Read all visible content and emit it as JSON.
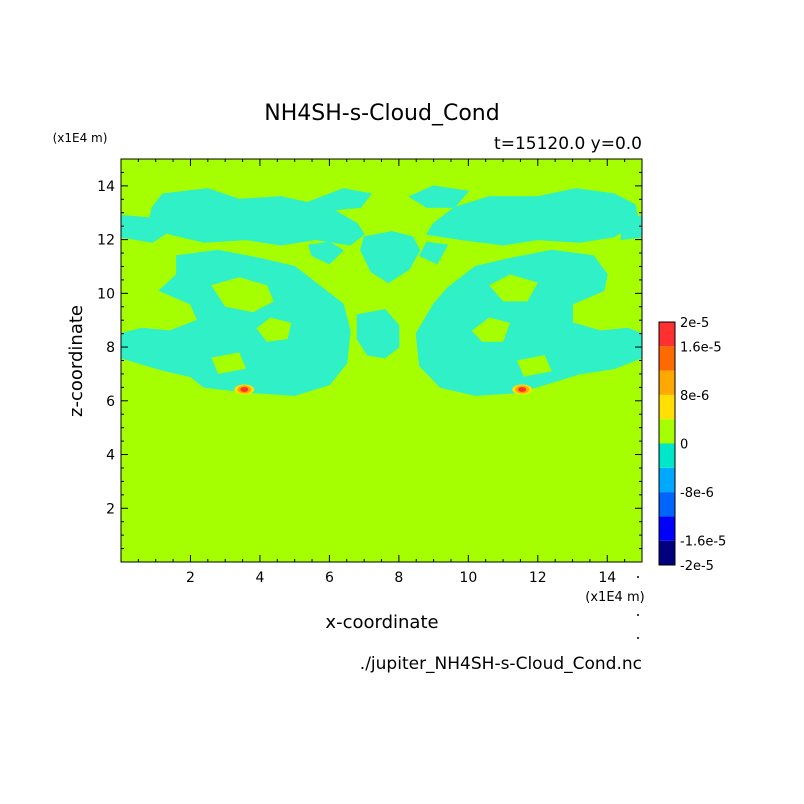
{
  "chart_data": {
    "type": "heatmap",
    "title": "NH4SH-s-Cloud_Cond",
    "subtitle": "t=15120.0 y=0.0",
    "xlabel": "x-coordinate",
    "ylabel": "z-coordinate",
    "x_units": "(x1E4 m)",
    "y_units": "(x1E4 m)",
    "footer": "./jupiter_NH4SH-s-Cloud_Cond.nc",
    "xlim": [
      0,
      15
    ],
    "ylim": [
      0,
      15
    ],
    "x_ticks": [
      2,
      4,
      6,
      8,
      10,
      12,
      14
    ],
    "y_ticks": [
      2,
      4,
      6,
      8,
      10,
      12,
      14
    ],
    "x_tick_labels": [
      "2",
      "4",
      "6",
      "8",
      "10",
      "12",
      "14"
    ],
    "y_tick_labels": [
      "2",
      "4",
      "6",
      "8",
      "10",
      "12",
      "14"
    ],
    "colorbar": {
      "labels": [
        "2e-5",
        "1.6e-5",
        "8e-6",
        "0",
        "-8e-6",
        "-1.6e-5",
        "-2e-5"
      ],
      "label_values": [
        2e-05,
        1.6e-05,
        8e-06,
        0,
        -8e-06,
        -1.6e-05,
        -2e-05
      ],
      "levels": [
        -2e-05,
        -1.6e-05,
        -1.2e-05,
        -8e-06,
        -4e-06,
        0,
        4e-06,
        8e-06,
        1.2e-05,
        1.6e-05,
        2e-05
      ],
      "colors": [
        "#00007e",
        "#0000ff",
        "#0064ff",
        "#00a8ff",
        "#00e6c8",
        "#a6ff00",
        "#ffe000",
        "#ffa800",
        "#ff6a00",
        "#ff3030"
      ]
    },
    "background_level_color": "#a6ff00",
    "negative_region_color": "#30f0c8",
    "cloud_regions": [
      [
        [
          1.2,
          13.7
        ],
        [
          2.5,
          13.9
        ],
        [
          3.4,
          13.5
        ],
        [
          4.6,
          13.6
        ],
        [
          6.0,
          13.2
        ],
        [
          6.8,
          12.6
        ],
        [
          7.0,
          12.2
        ],
        [
          6.6,
          11.8
        ],
        [
          5.6,
          12.0
        ],
        [
          4.6,
          11.8
        ],
        [
          3.6,
          12.0
        ],
        [
          2.4,
          11.9
        ],
        [
          1.4,
          12.2
        ],
        [
          0.8,
          12.7
        ],
        [
          0.9,
          13.2
        ]
      ],
      [
        [
          0.0,
          12.9
        ],
        [
          0.9,
          12.8
        ],
        [
          1.5,
          12.4
        ],
        [
          0.9,
          11.9
        ],
        [
          0.0,
          12.1
        ]
      ],
      [
        [
          1.6,
          11.4
        ],
        [
          2.8,
          11.6
        ],
        [
          4.0,
          11.3
        ],
        [
          5.0,
          11.0
        ],
        [
          5.8,
          10.2
        ],
        [
          6.4,
          9.6
        ],
        [
          6.6,
          8.6
        ],
        [
          6.5,
          7.4
        ],
        [
          6.0,
          6.6
        ],
        [
          5.0,
          6.2
        ],
        [
          3.8,
          6.3
        ],
        [
          2.4,
          6.5
        ],
        [
          2.0,
          6.9
        ],
        [
          1.3,
          7.1
        ],
        [
          0.5,
          7.4
        ],
        [
          0.0,
          7.6
        ],
        [
          0.0,
          8.5
        ],
        [
          0.6,
          8.7
        ],
        [
          1.4,
          8.6
        ],
        [
          2.2,
          9.0
        ],
        [
          2.0,
          9.6
        ],
        [
          1.1,
          10.1
        ],
        [
          1.6,
          10.7
        ]
      ],
      [
        [
          5.4,
          11.8
        ],
        [
          6.0,
          11.9
        ],
        [
          6.4,
          11.6
        ],
        [
          6.0,
          11.1
        ],
        [
          5.5,
          11.4
        ]
      ],
      [
        [
          6.8,
          9.2
        ],
        [
          7.6,
          9.4
        ],
        [
          8.0,
          8.8
        ],
        [
          8.0,
          8.0
        ],
        [
          7.6,
          7.6
        ],
        [
          7.1,
          7.7
        ],
        [
          6.8,
          8.3
        ]
      ],
      [
        [
          8.8,
          12.2
        ],
        [
          9.0,
          12.6
        ],
        [
          9.6,
          13.2
        ],
        [
          10.6,
          13.6
        ],
        [
          12.0,
          13.6
        ],
        [
          13.1,
          13.9
        ],
        [
          14.2,
          13.7
        ],
        [
          14.8,
          13.3
        ],
        [
          14.9,
          12.7
        ],
        [
          14.2,
          12.1
        ],
        [
          13.2,
          11.9
        ],
        [
          12.0,
          12.0
        ],
        [
          11.0,
          11.8
        ],
        [
          9.8,
          12.0
        ]
      ],
      [
        [
          14.4,
          12.6
        ],
        [
          15.0,
          12.9
        ],
        [
          15.0,
          12.1
        ],
        [
          14.4,
          12.0
        ]
      ],
      [
        [
          8.8,
          11.9
        ],
        [
          9.4,
          11.8
        ],
        [
          9.1,
          11.1
        ],
        [
          8.6,
          11.4
        ]
      ],
      [
        [
          9.0,
          9.6
        ],
        [
          9.4,
          10.2
        ],
        [
          10.2,
          11.0
        ],
        [
          11.2,
          11.3
        ],
        [
          12.4,
          11.6
        ],
        [
          13.6,
          11.4
        ],
        [
          14.0,
          10.7
        ],
        [
          13.9,
          10.1
        ],
        [
          13.0,
          9.6
        ],
        [
          13.0,
          8.9
        ],
        [
          13.8,
          8.6
        ],
        [
          14.6,
          8.7
        ],
        [
          15.0,
          8.5
        ],
        [
          15.0,
          7.6
        ],
        [
          14.2,
          7.2
        ],
        [
          13.2,
          7.0
        ],
        [
          12.2,
          6.6
        ],
        [
          11.4,
          6.3
        ],
        [
          10.2,
          6.2
        ],
        [
          9.2,
          6.5
        ],
        [
          8.6,
          7.3
        ],
        [
          8.5,
          8.5
        ]
      ],
      [
        [
          7.0,
          12.1
        ],
        [
          7.8,
          12.3
        ],
        [
          8.4,
          12.1
        ],
        [
          8.6,
          11.6
        ],
        [
          8.3,
          10.9
        ],
        [
          7.7,
          10.4
        ],
        [
          7.2,
          10.8
        ],
        [
          6.9,
          11.6
        ]
      ],
      [
        [
          5.4,
          13.4
        ],
        [
          6.4,
          13.9
        ],
        [
          7.2,
          13.7
        ],
        [
          6.9,
          13.2
        ],
        [
          6.1,
          13.1
        ]
      ],
      [
        [
          8.3,
          13.6
        ],
        [
          9.0,
          14.0
        ],
        [
          10.0,
          13.8
        ],
        [
          9.6,
          13.2
        ],
        [
          8.8,
          13.2
        ]
      ]
    ],
    "cloud_holes": [
      [
        [
          2.6,
          10.3
        ],
        [
          3.4,
          10.6
        ],
        [
          4.2,
          10.3
        ],
        [
          4.4,
          9.7
        ],
        [
          3.8,
          9.3
        ],
        [
          3.0,
          9.5
        ]
      ],
      [
        [
          3.9,
          8.7
        ],
        [
          4.3,
          9.1
        ],
        [
          4.9,
          8.9
        ],
        [
          4.8,
          8.3
        ],
        [
          4.2,
          8.2
        ]
      ],
      [
        [
          10.1,
          8.6
        ],
        [
          10.6,
          9.1
        ],
        [
          11.2,
          8.9
        ],
        [
          11.0,
          8.2
        ],
        [
          10.4,
          8.2
        ]
      ],
      [
        [
          10.6,
          10.3
        ],
        [
          11.2,
          10.7
        ],
        [
          12.0,
          10.4
        ],
        [
          11.7,
          9.7
        ],
        [
          11.0,
          9.7
        ]
      ],
      [
        [
          2.6,
          7.6
        ],
        [
          3.4,
          7.8
        ],
        [
          3.6,
          7.2
        ],
        [
          2.8,
          7.0
        ]
      ],
      [
        [
          11.4,
          7.5
        ],
        [
          12.2,
          7.7
        ],
        [
          12.4,
          7.1
        ],
        [
          11.6,
          6.9
        ]
      ]
    ],
    "hotspots": [
      {
        "x": 3.55,
        "y": 6.42,
        "value": 1.6e-05
      },
      {
        "x": 11.55,
        "y": 6.42,
        "value": 1.6e-05
      }
    ]
  }
}
